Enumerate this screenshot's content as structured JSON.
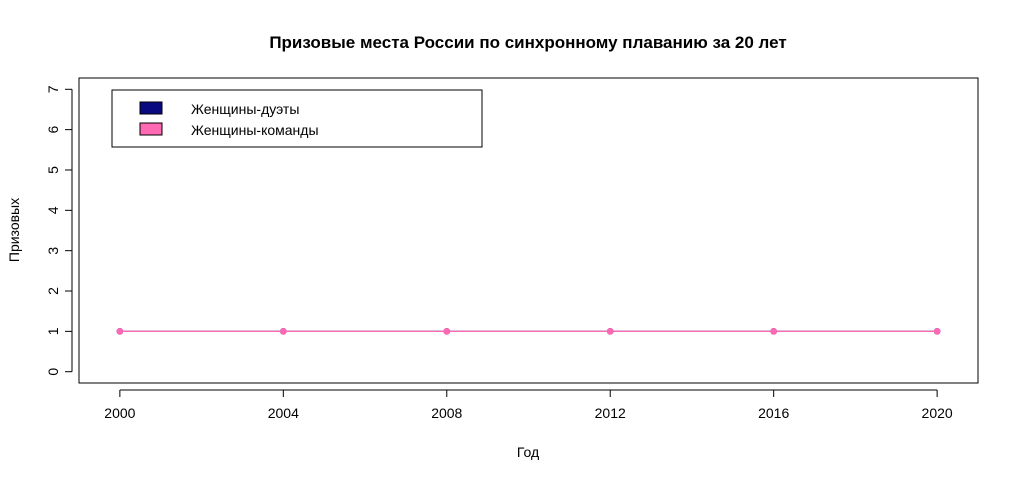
{
  "chart_data": {
    "type": "line",
    "title": "Призовые места России по синхронному плаванию  за 20 лет",
    "xlabel": "Год",
    "ylabel": "Призовых",
    "x": [
      2000,
      2004,
      2008,
      2012,
      2016,
      2020
    ],
    "x_ticks": [
      "2000",
      "2004",
      "2008",
      "2012",
      "2016",
      "2020"
    ],
    "xlim": [
      1999,
      2021
    ],
    "y_ticks": [
      "0",
      "1",
      "2",
      "3",
      "4",
      "5",
      "6",
      "7"
    ],
    "ylim": [
      -0.28,
      7.28
    ],
    "grid": false,
    "legend": {
      "position": "top-left",
      "entries": [
        {
          "name": "Женщины-дуэты",
          "color": "#0a0a80"
        },
        {
          "name": "Женщины-команды",
          "color": "#ff69b4"
        }
      ]
    },
    "series": [
      {
        "name": "Женщины-дуэты",
        "color": "#0a0a80",
        "values": [
          1,
          1,
          1,
          1,
          1,
          1
        ]
      },
      {
        "name": "Женщины-команды",
        "color": "#ff69b4",
        "values": [
          1,
          1,
          1,
          1,
          1,
          1
        ]
      }
    ]
  }
}
